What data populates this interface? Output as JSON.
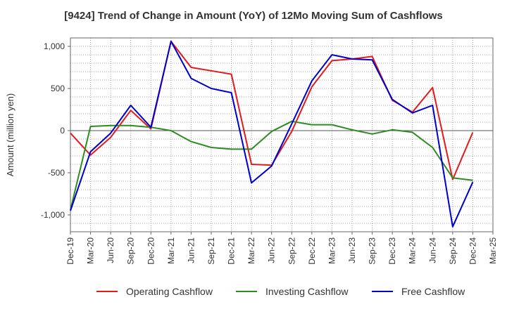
{
  "chart_data": {
    "type": "line",
    "title": "[9424]  Trend of Change in Amount (YoY) of 12Mo Moving Sum of Cashflows",
    "xlabel": "",
    "ylabel": "Amount (million yen)",
    "ylim": [
      -1200,
      1100
    ],
    "yticks": [
      -1000,
      -500,
      0,
      500,
      1000
    ],
    "ytick_labels": [
      "-1,000",
      "-500",
      "0",
      "500",
      "1,000"
    ],
    "grid": true,
    "legend_position": "bottom",
    "categories": [
      "Dec-19",
      "Mar-20",
      "Jun-20",
      "Sep-20",
      "Dec-20",
      "Mar-21",
      "Jun-21",
      "Sep-21",
      "Dec-21",
      "Mar-22",
      "Jun-22",
      "Sep-22",
      "Dec-22",
      "Mar-23",
      "Jun-23",
      "Sep-23",
      "Dec-23",
      "Mar-24",
      "Jun-24",
      "Sep-24",
      "Dec-24",
      "Mar-25"
    ],
    "series": [
      {
        "name": "Operating Cashflow",
        "color": "#e31a1c",
        "values": [
          -30,
          -290,
          -80,
          240,
          20,
          1060,
          750,
          710,
          670,
          -400,
          -410,
          -10,
          520,
          830,
          850,
          880,
          360,
          220,
          510,
          -580,
          -20,
          null
        ]
      },
      {
        "name": "Investing Cashflow",
        "color": "#2e8b22",
        "values": [
          -940,
          50,
          60,
          60,
          40,
          0,
          -130,
          -200,
          -220,
          -220,
          -10,
          110,
          70,
          70,
          10,
          -40,
          10,
          -20,
          -200,
          -560,
          -590,
          null
        ]
      },
      {
        "name": "Free Cashflow",
        "color": "#0000cc",
        "values": [
          -950,
          -250,
          -30,
          300,
          40,
          1060,
          620,
          500,
          450,
          -620,
          -420,
          80,
          590,
          900,
          850,
          840,
          370,
          210,
          300,
          -1140,
          -610,
          null
        ]
      }
    ]
  }
}
